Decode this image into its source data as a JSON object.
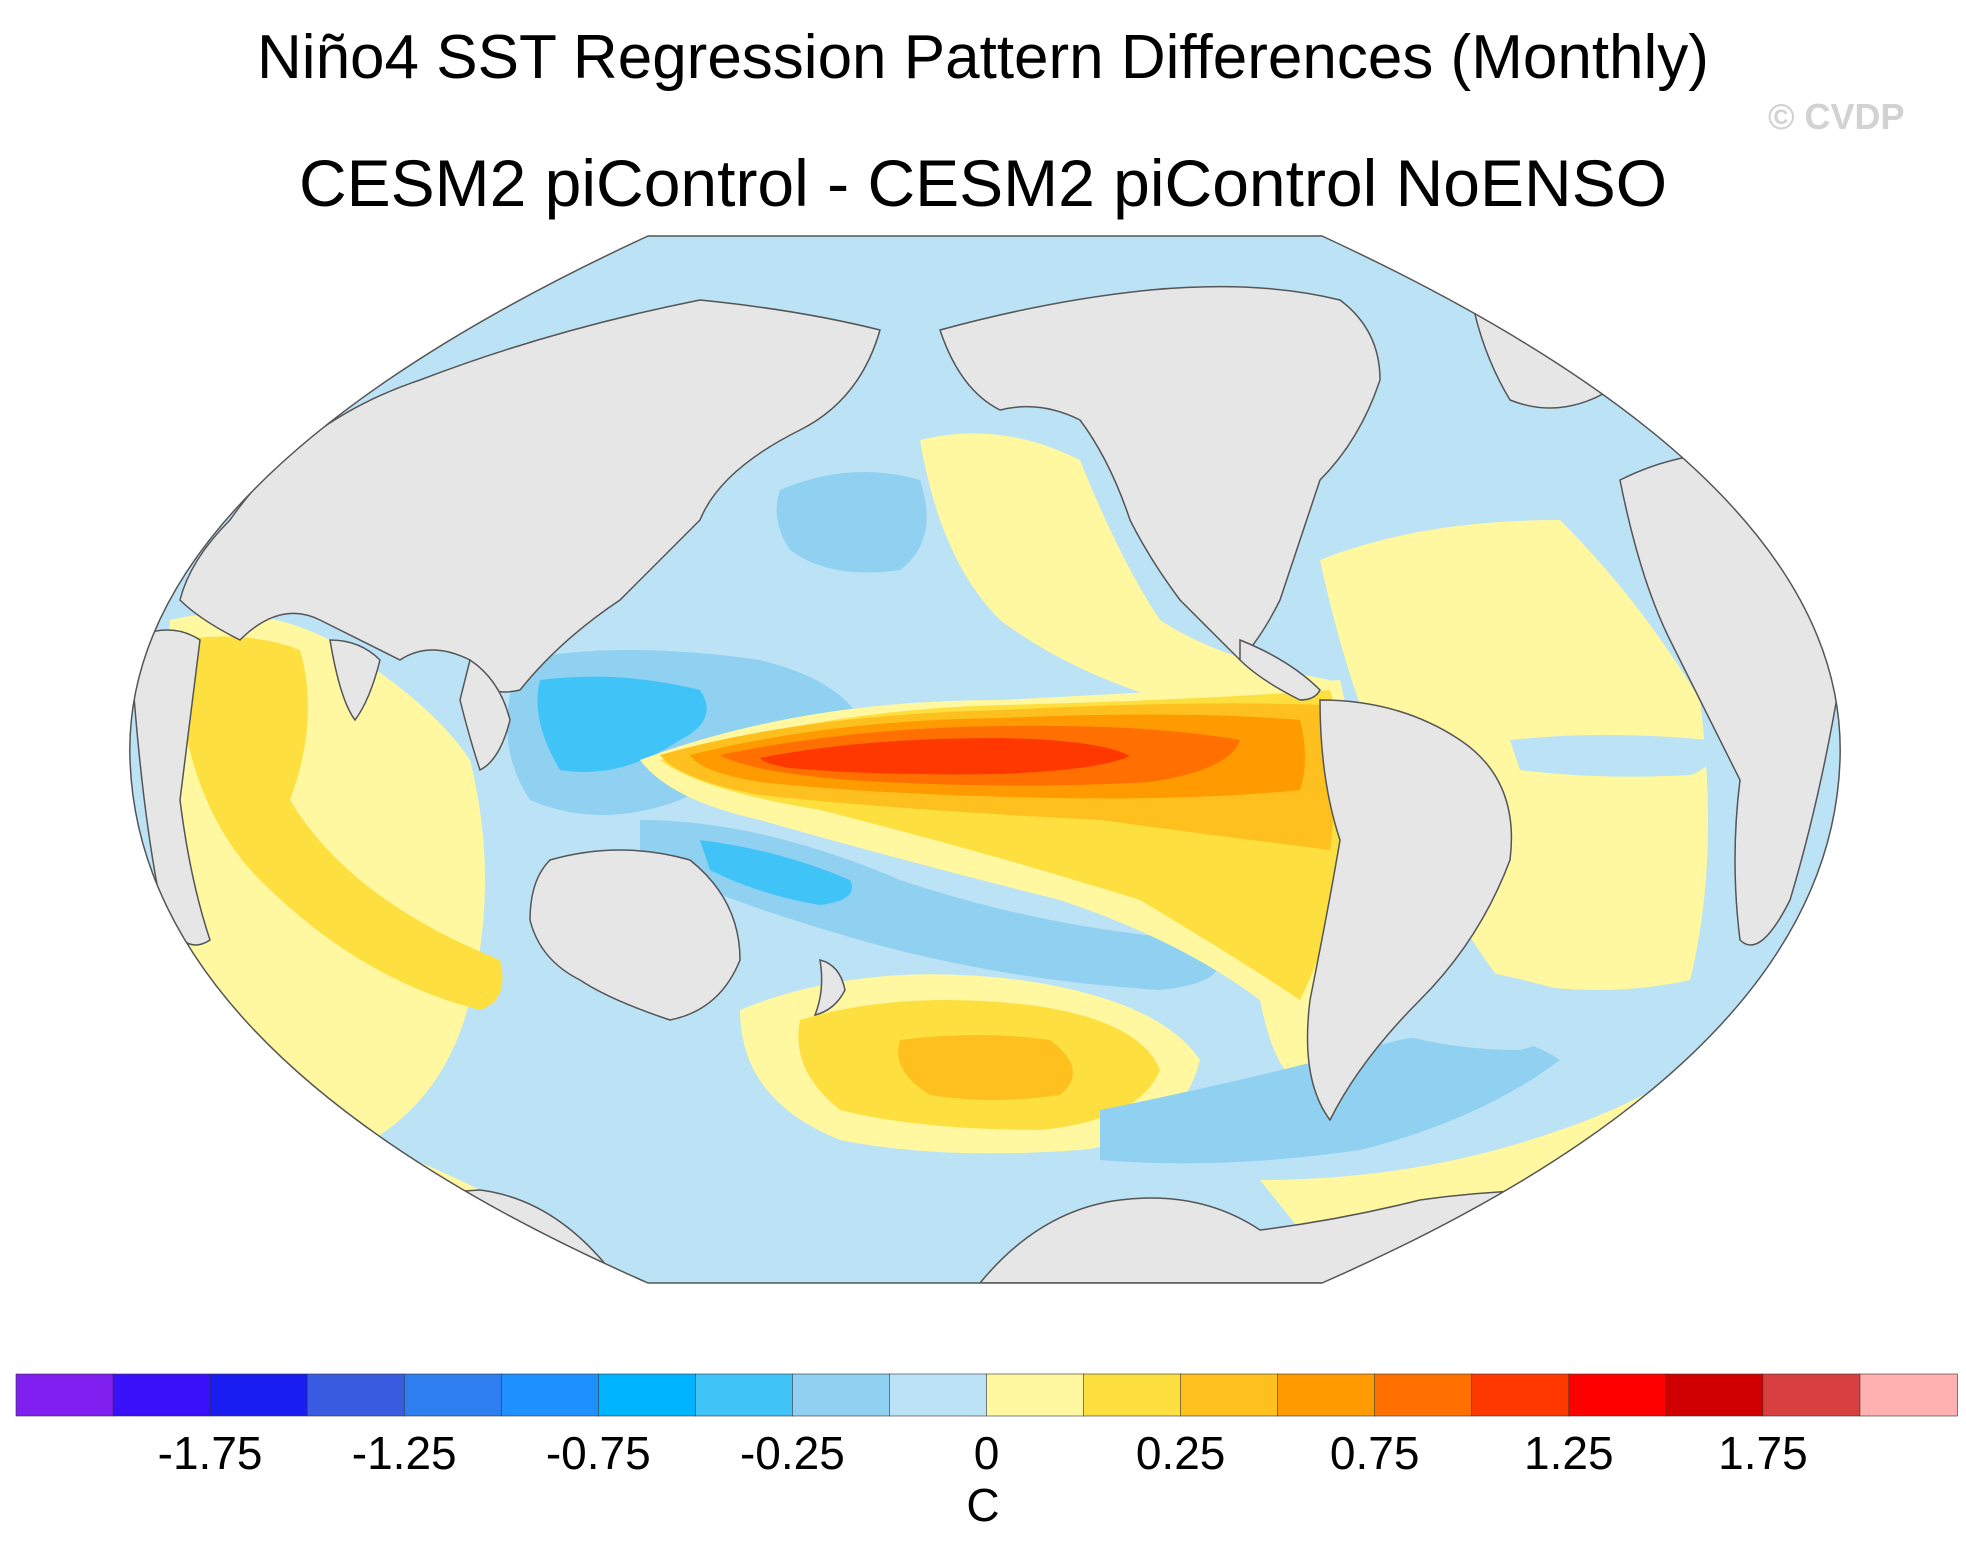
{
  "title": "Niño4 SST Regression Pattern Differences (Monthly)",
  "subtitle": "CESM2 piControl - CESM2 piControl NoENSO",
  "watermark": "© CVDP",
  "chart_data": {
    "type": "heatmap",
    "projection": "robinson",
    "variable": "SST regression difference",
    "units_label": "C",
    "land_color": "#e6e6e6",
    "levels": [
      -2.0,
      -1.75,
      -1.5,
      -1.25,
      -1.0,
      -0.75,
      -0.5,
      -0.25,
      -0.125,
      0,
      0.125,
      0.25,
      0.5,
      0.75,
      1.0,
      1.25,
      1.5,
      1.75,
      2.0
    ],
    "colors": [
      "#8020f0",
      "#3a10f8",
      "#1a1ef0",
      "#3a5ce0",
      "#2e7ef0",
      "#1f90ff",
      "#00b4ff",
      "#40c4f8",
      "#90d0f0",
      "#bce2f6",
      "#fff8a0",
      "#fde040",
      "#fdc01e",
      "#ff9a00",
      "#ff7000",
      "#ff3800",
      "#ff0000",
      "#d00000",
      "#d84040",
      "#ffb0b0"
    ],
    "tick_labels": [
      "-1.75",
      "-1.25",
      "-0.75",
      "-0.25",
      "0",
      "0.25",
      "0.75",
      "1.25",
      "1.75"
    ],
    "tick_values": [
      -1.75,
      -1.25,
      -0.75,
      -0.25,
      0,
      0.25,
      0.75,
      1.25,
      1.75
    ],
    "features": [
      {
        "name": "Equatorial central Pacific warm tongue",
        "value": 1.5
      },
      {
        "name": "Eastern tropical Pacific",
        "value": 0.75
      },
      {
        "name": "Western tropical Pacific",
        "value": -0.75
      },
      {
        "name": "Southwest Pacific",
        "value": -0.5
      },
      {
        "name": "North Pacific",
        "value": -0.25
      },
      {
        "name": "South Pacific midlatitudes",
        "value": 0.5
      },
      {
        "name": "Indian Ocean",
        "value": 0.25
      },
      {
        "name": "Tropical Atlantic",
        "value": 0.125
      }
    ]
  }
}
